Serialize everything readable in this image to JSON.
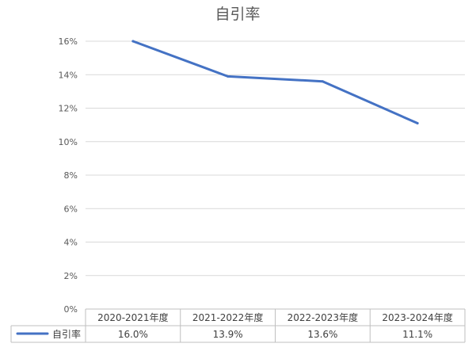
{
  "chart_data": {
    "type": "line",
    "title": "自引率",
    "categories": [
      "2020-2021年度",
      "2021-2022年度",
      "2022-2023年度",
      "2023-2024年度"
    ],
    "series": [
      {
        "name": "自引率",
        "values": [
          16.0,
          13.9,
          13.6,
          11.1
        ],
        "color": "#4472c4"
      }
    ],
    "data_labels": [
      "16.0%",
      "13.9%",
      "13.6%",
      "11.1%"
    ],
    "y_ticks": [
      "0%",
      "2%",
      "4%",
      "6%",
      "8%",
      "10%",
      "12%",
      "14%",
      "16%"
    ],
    "ylim": [
      0,
      16
    ],
    "grid": true,
    "legend": "data-table-bottom"
  }
}
